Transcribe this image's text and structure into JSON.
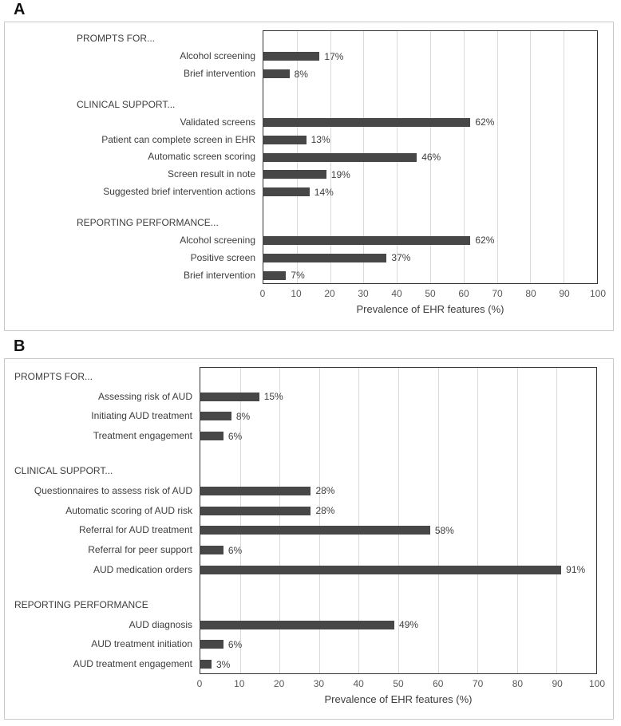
{
  "colors": {
    "bar": "#474747",
    "gridline": "#d9d9d9",
    "frame": "#333333",
    "label_text": "#3d3d3d",
    "tick_text": "#595959",
    "panel_border": "#c9c9c9"
  },
  "chart_data": [
    {
      "type": "bar",
      "orientation": "horizontal",
      "panel": "A",
      "xlabel": "Prevalence of EHR features (%)",
      "xlim": [
        0,
        100
      ],
      "x_ticks": [
        0,
        10,
        20,
        30,
        40,
        50,
        60,
        70,
        80,
        90,
        100
      ],
      "grid": true,
      "value_suffix": "%",
      "sections": [
        {
          "header": "PROMPTS FOR...",
          "items": [
            {
              "label": "Alcohol screening",
              "value": 17,
              "display": "17%"
            },
            {
              "label": "Brief intervention",
              "value": 8,
              "display": "8%"
            }
          ]
        },
        {
          "header": "CLINICAL SUPPORT...",
          "items": [
            {
              "label": "Validated screens",
              "value": 62,
              "display": "62%"
            },
            {
              "label": "Patient can complete screen in EHR",
              "value": 13,
              "display": "13%"
            },
            {
              "label": "Automatic screen scoring",
              "value": 46,
              "display": "46%"
            },
            {
              "label": "Screen result in note",
              "value": 19,
              "display": "19%"
            },
            {
              "label": "Suggested brief intervention actions",
              "value": 14,
              "display": "14%"
            }
          ]
        },
        {
          "header": "REPORTING PERFORMANCE...",
          "items": [
            {
              "label": "Alcohol screening",
              "value": 62,
              "display": "62%"
            },
            {
              "label": "Positive screen",
              "value": 37,
              "display": "37%"
            },
            {
              "label": "Brief intervention",
              "value": 7,
              "display": "7%"
            }
          ]
        }
      ]
    },
    {
      "type": "bar",
      "orientation": "horizontal",
      "panel": "B",
      "xlabel": "Prevalence of EHR features (%)",
      "xlim": [
        0,
        100
      ],
      "x_ticks": [
        0,
        10,
        20,
        30,
        40,
        50,
        60,
        70,
        80,
        90,
        100
      ],
      "grid": true,
      "value_suffix": "%",
      "sections": [
        {
          "header": "PROMPTS FOR...",
          "items": [
            {
              "label": "Assessing risk of AUD",
              "value": 15,
              "display": "15%"
            },
            {
              "label": "Initiating AUD treatment",
              "value": 8,
              "display": "8%"
            },
            {
              "label": "Treatment engagement",
              "value": 6,
              "display": "6%"
            }
          ]
        },
        {
          "header": "CLINICAL SUPPORT...",
          "items": [
            {
              "label": "Questionnaires to assess risk of AUD",
              "value": 28,
              "display": "28%"
            },
            {
              "label": "Automatic scoring of AUD risk",
              "value": 28,
              "display": "28%"
            },
            {
              "label": "Referral for AUD treatment",
              "value": 58,
              "display": "58%"
            },
            {
              "label": "Referral for peer support",
              "value": 6,
              "display": "6%"
            },
            {
              "label": "AUD medication orders",
              "value": 91,
              "display": "91%"
            }
          ]
        },
        {
          "header": "REPORTING PERFORMANCE",
          "items": [
            {
              "label": "AUD diagnosis",
              "value": 49,
              "display": "49%"
            },
            {
              "label": "AUD treatment initiation",
              "value": 6,
              "display": "6%"
            },
            {
              "label": "AUD treatment engagement",
              "value": 3,
              "display": "3%"
            }
          ]
        }
      ]
    }
  ]
}
